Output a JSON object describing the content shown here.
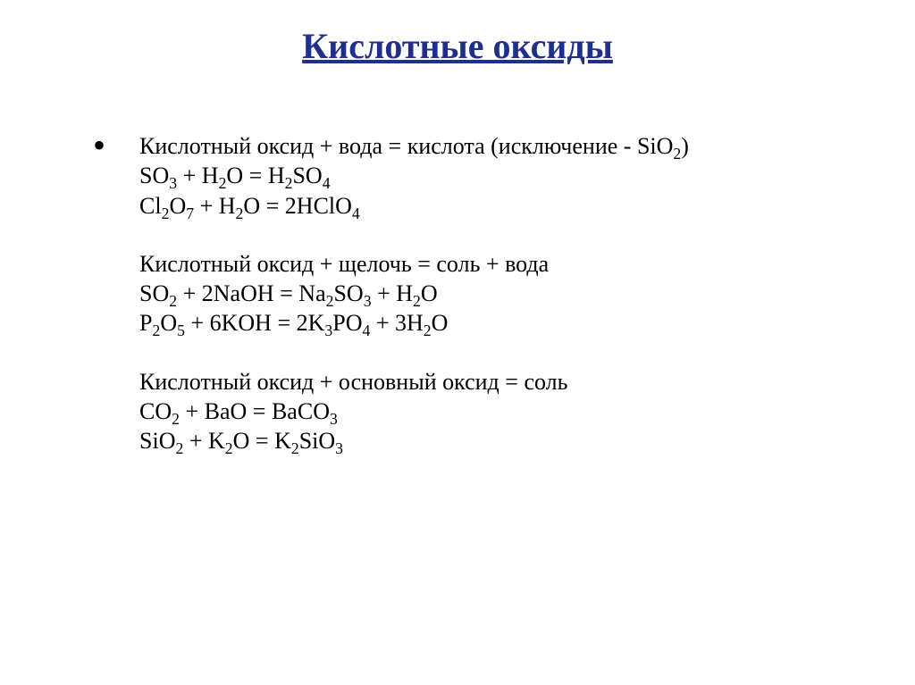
{
  "title_color": "#1f2f8f",
  "text_color": "#000000",
  "background_color": "#ffffff",
  "title": "Кислотные оксиды",
  "groups": [
    {
      "heading_parts": [
        {
          "t": "Кислотный оксид + вода = кислота (исключение - SiO"
        },
        {
          "t": "2",
          "sub": true
        },
        {
          "t": ")"
        }
      ],
      "lines": [
        [
          {
            "t": "SO"
          },
          {
            "t": "3",
            "sub": true
          },
          {
            "t": " + H"
          },
          {
            "t": "2",
            "sub": true
          },
          {
            "t": "O = H"
          },
          {
            "t": "2",
            "sub": true
          },
          {
            "t": "SO"
          },
          {
            "t": "4",
            "sub": true
          }
        ],
        [
          {
            "t": "Cl"
          },
          {
            "t": "2",
            "sub": true
          },
          {
            "t": "O"
          },
          {
            "t": "7",
            "sub": true
          },
          {
            "t": " + H"
          },
          {
            "t": "2",
            "sub": true
          },
          {
            "t": "O = 2HClO"
          },
          {
            "t": "4",
            "sub": true
          }
        ]
      ]
    },
    {
      "heading_parts": [
        {
          "t": "Кислотный оксид + щелочь = соль + вода"
        }
      ],
      "lines": [
        [
          {
            "t": "SO"
          },
          {
            "t": "2",
            "sub": true
          },
          {
            "t": " + 2NaOH = Na"
          },
          {
            "t": "2",
            "sub": true
          },
          {
            "t": "SO"
          },
          {
            "t": "3",
            "sub": true
          },
          {
            "t": " + H"
          },
          {
            "t": "2",
            "sub": true
          },
          {
            "t": "O"
          }
        ],
        [
          {
            "t": "P"
          },
          {
            "t": "2",
            "sub": true
          },
          {
            "t": "O"
          },
          {
            "t": "5",
            "sub": true
          },
          {
            "t": " + 6KOH = 2K"
          },
          {
            "t": "3",
            "sub": true
          },
          {
            "t": "PO"
          },
          {
            "t": "4",
            "sub": true
          },
          {
            "t": " + 3H"
          },
          {
            "t": "2",
            "sub": true
          },
          {
            "t": "O"
          }
        ]
      ]
    },
    {
      "heading_parts": [
        {
          "t": "Кислотный оксид + основный оксид = соль"
        }
      ],
      "lines": [
        [
          {
            "t": "CO"
          },
          {
            "t": "2",
            "sub": true
          },
          {
            "t": " + BaO = BaCO"
          },
          {
            "t": "3",
            "sub": true
          }
        ],
        [
          {
            "t": "SiO"
          },
          {
            "t": "2",
            "sub": true
          },
          {
            "t": " + K"
          },
          {
            "t": "2",
            "sub": true
          },
          {
            "t": "O = K"
          },
          {
            "t": "2",
            "sub": true
          },
          {
            "t": "SiO"
          },
          {
            "t": "3",
            "sub": true
          }
        ]
      ]
    }
  ]
}
